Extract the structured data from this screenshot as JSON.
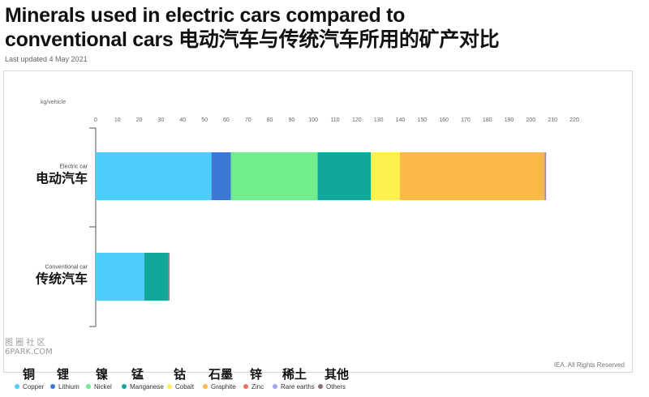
{
  "header": {
    "title_line1": "Minerals used in electric cars compared to",
    "title_line2": "conventional cars  电动汽车与传统汽车所用的矿产对比",
    "updated": "Last updated 4 May 2021"
  },
  "credit": "IEA. All Rights Reserved",
  "watermark": {
    "line1": "图 圈 社 区",
    "line2": "6PARK.COM"
  },
  "chart_data": {
    "type": "bar",
    "orientation": "horizontal",
    "stacked": true,
    "unit_label": "kg/vehicle",
    "xlim": [
      0,
      220
    ],
    "xticks": [
      0,
      10,
      20,
      30,
      40,
      50,
      60,
      70,
      80,
      90,
      100,
      110,
      120,
      130,
      140,
      150,
      160,
      170,
      180,
      190,
      200,
      210,
      220
    ],
    "grid": false,
    "legend_position": "bottom",
    "categories": [
      {
        "label_en": "Electric car",
        "label_zh": "电动汽车"
      },
      {
        "label_en": "Conventional car",
        "label_zh": "传统汽车"
      }
    ],
    "series": [
      {
        "name": "Copper",
        "name_zh": "铜",
        "color": "#4dcdfc",
        "values": [
          53.2,
          22.3
        ]
      },
      {
        "name": "Lithium",
        "name_zh": "锂",
        "color": "#3c78d8",
        "values": [
          8.9,
          0
        ]
      },
      {
        "name": "Nickel",
        "name_zh": "镍",
        "color": "#70ee8e",
        "values": [
          39.9,
          0
        ]
      },
      {
        "name": "Manganese",
        "name_zh": "锰",
        "color": "#10a89a",
        "values": [
          24.5,
          11.2
        ]
      },
      {
        "name": "Cobalt",
        "name_zh": "钴",
        "color": "#fdf04f",
        "values": [
          13.3,
          0
        ]
      },
      {
        "name": "Graphite",
        "name_zh": "石墨",
        "color": "#fdb84a",
        "values": [
          66.3,
          0
        ]
      },
      {
        "name": "Zinc",
        "name_zh": "锌",
        "color": "#ef6f5f",
        "values": [
          0.1,
          0.1
        ]
      },
      {
        "name": "Rare earths",
        "name_zh": "稀土",
        "color": "#a3a3f5",
        "values": [
          0.5,
          0
        ]
      },
      {
        "name": "Others",
        "name_zh": "其他",
        "color": "#8e6a7c",
        "values": [
          0.3,
          0.3
        ]
      }
    ]
  }
}
